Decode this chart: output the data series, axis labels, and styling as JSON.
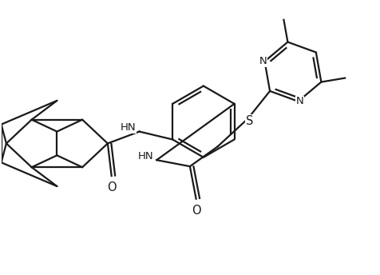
{
  "background_color": "#ffffff",
  "line_color": "#1a1a1a",
  "line_width": 1.6,
  "font_size": 9.5,
  "figsize": [
    4.76,
    3.44
  ],
  "dpi": 100,
  "xlim": [
    0,
    476
  ],
  "ylim": [
    0,
    344
  ]
}
